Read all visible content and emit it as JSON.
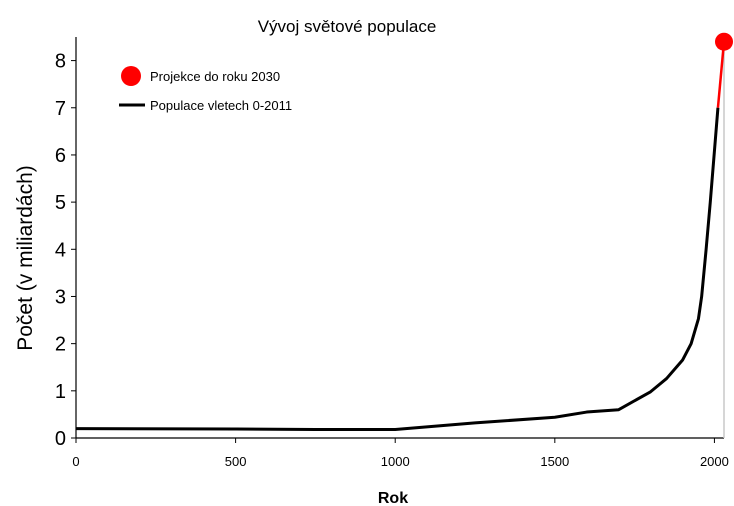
{
  "chart_data": {
    "type": "line",
    "title": "Vývoj světové populace",
    "xlabel": "Rok",
    "ylabel": "Počet (v miliardách)",
    "xlim": [
      0,
      2030
    ],
    "ylim": [
      0,
      8.5
    ],
    "xticks": [
      0,
      500,
      1000,
      1500,
      2000
    ],
    "yticks": [
      0,
      1,
      2,
      3,
      4,
      5,
      6,
      7,
      8
    ],
    "grid": false,
    "legend_position": "top-left",
    "series": [
      {
        "name": "Populace vletech 0-2011",
        "color": "#000000",
        "x": [
          0,
          500,
          750,
          1000,
          1250,
          1500,
          1600,
          1700,
          1800,
          1850,
          1900,
          1927,
          1950,
          1960,
          1974,
          1987,
          1999,
          2011
        ],
        "y": [
          0.2,
          0.19,
          0.18,
          0.18,
          0.32,
          0.44,
          0.55,
          0.6,
          0.98,
          1.26,
          1.65,
          2.0,
          2.53,
          3.0,
          4.0,
          5.0,
          6.0,
          7.0
        ]
      },
      {
        "name": "Projekce do roku 2030",
        "color": "#ff0000",
        "x": [
          2011,
          2030
        ],
        "y": [
          7.0,
          8.4
        ]
      }
    ]
  }
}
